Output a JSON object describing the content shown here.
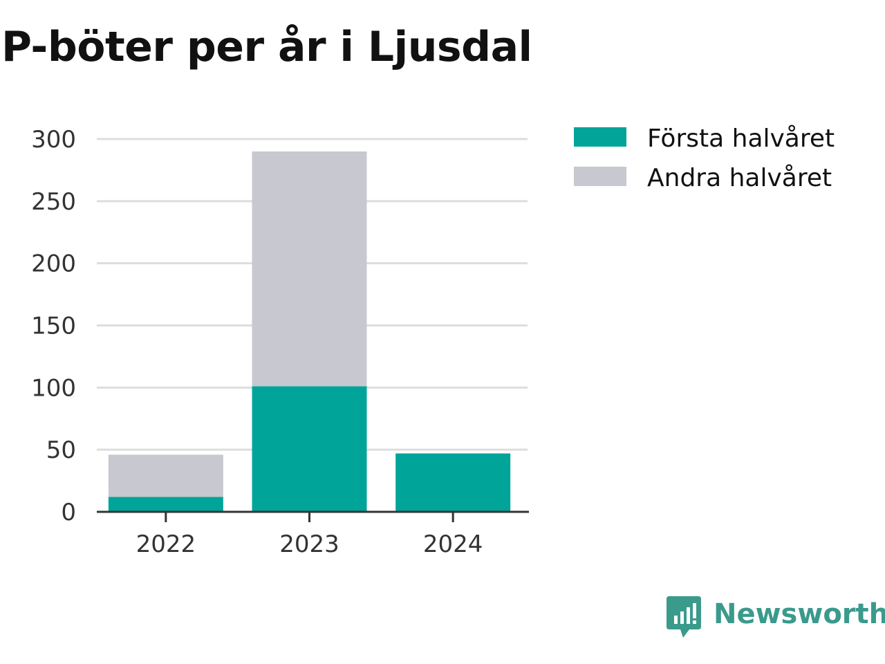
{
  "title": "P-böter per år i Ljusdal",
  "brand": {
    "name": "Newsworthy",
    "logo_icon": "bar-chart-speech-bubble-icon"
  },
  "colors": {
    "first_half": "#00a499",
    "second_half": "#c8c8d0",
    "gridline": "#dddddd",
    "axis": "#333333",
    "brand": "#3a9a8c"
  },
  "chart_data": {
    "type": "bar",
    "stacked": true,
    "title": "P-böter per år i Ljusdal",
    "xlabel": "",
    "ylabel": "",
    "categories": [
      "2022",
      "2023",
      "2024"
    ],
    "series": [
      {
        "name": "Första halvåret",
        "values": [
          12,
          101,
          47
        ]
      },
      {
        "name": "Andra halvåret",
        "values": [
          34,
          189,
          0
        ]
      }
    ],
    "ylim": [
      0,
      300
    ],
    "yticks": [
      0,
      50,
      100,
      150,
      200,
      250,
      300
    ],
    "grid": true,
    "legend": "top-right"
  }
}
